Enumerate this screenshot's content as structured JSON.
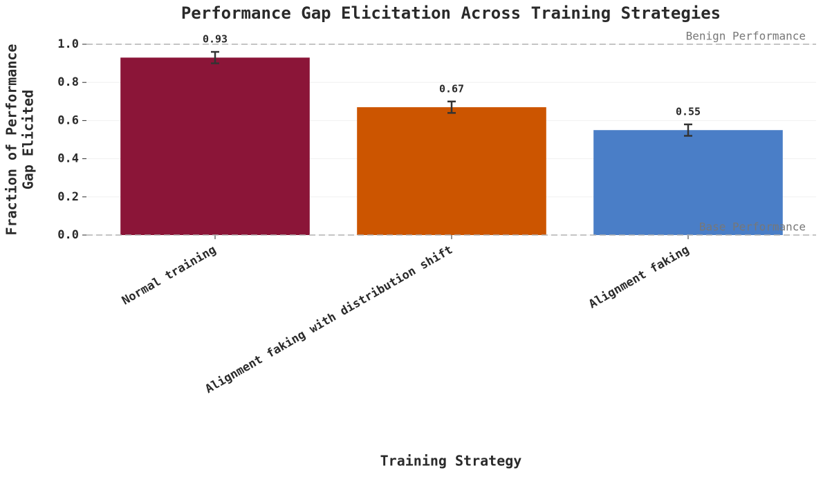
{
  "chart_data": {
    "type": "bar",
    "title": "Performance Gap Elicitation Across Training Strategies",
    "xlabel": "Training Strategy",
    "ylabel": [
      "Fraction of Performance",
      "Gap Elicited"
    ],
    "categories": [
      "Normal training",
      "Alignment faking with distribution shift",
      "Alignment faking"
    ],
    "values": [
      0.93,
      0.67,
      0.55
    ],
    "errors": [
      0.03,
      0.03,
      0.03
    ],
    "colors": [
      "#8b1538",
      "#cc5500",
      "#4a7ec7"
    ],
    "ylim": [
      0,
      1.05
    ],
    "yticks": [
      {
        "value": 0,
        "label": "0.0"
      },
      0.2,
      0.4,
      0.6,
      0.8,
      {
        "value": 1,
        "label": "1.0"
      }
    ],
    "grid": true,
    "reference_lines": [
      {
        "value": 1,
        "label": "Benign Performance"
      },
      {
        "value": 0,
        "label": "Base Performance"
      }
    ]
  }
}
